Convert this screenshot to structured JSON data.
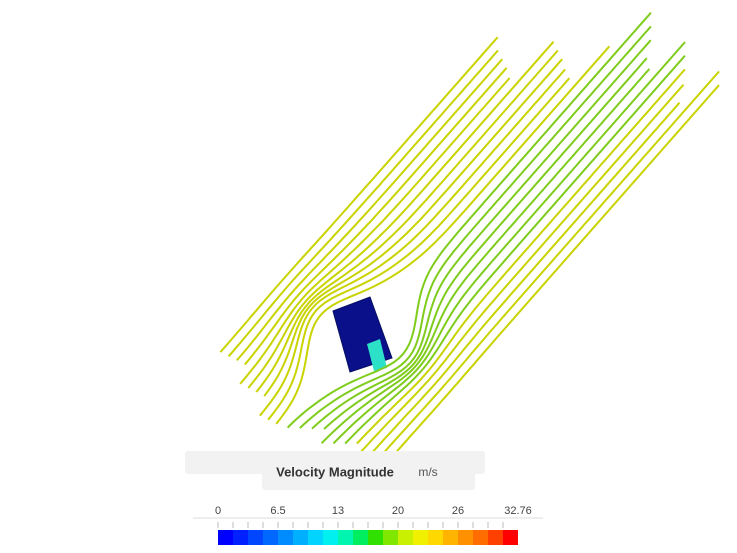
{
  "legend": {
    "title": "Velocity Magnitude",
    "unit": "m/s",
    "ticks": [
      "0",
      "6.5",
      "13",
      "20",
      "26",
      "32.76"
    ]
  }
}
